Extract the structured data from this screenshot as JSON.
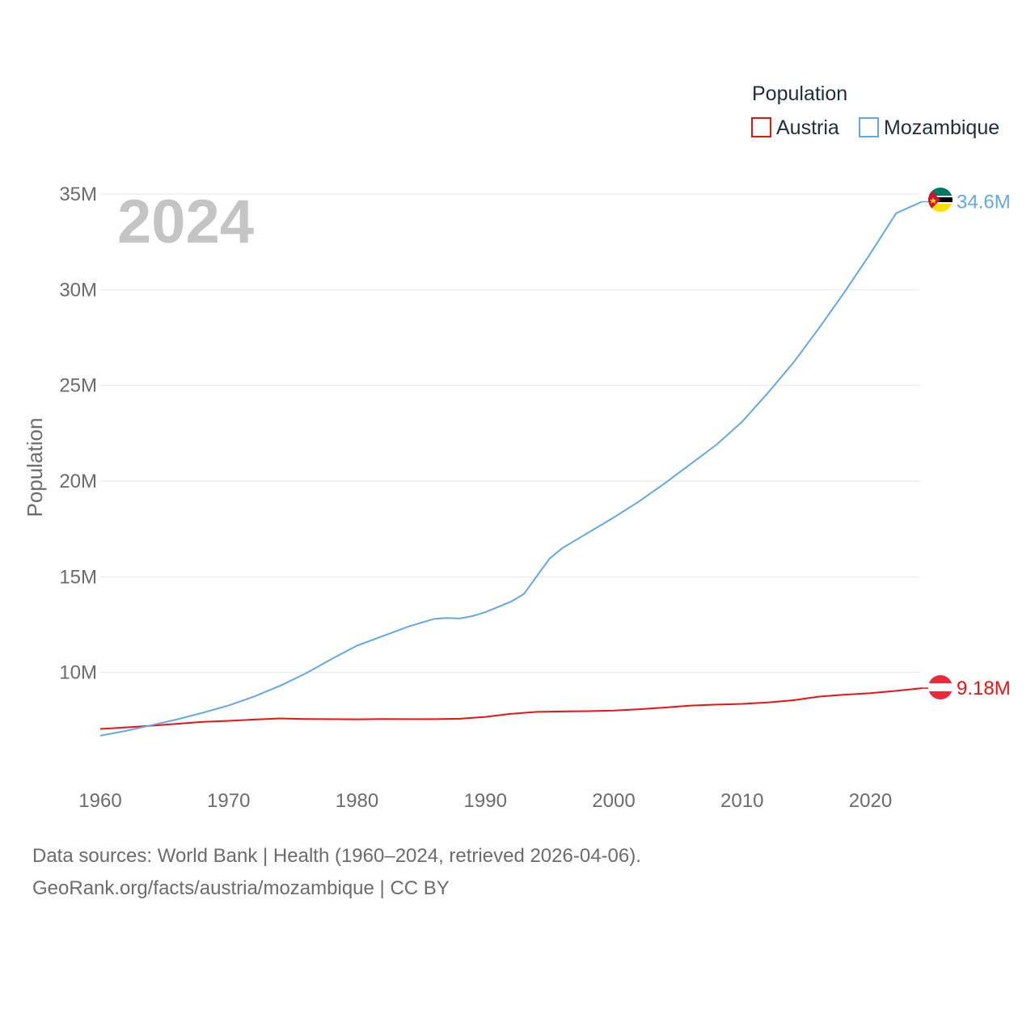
{
  "chart_data": {
    "type": "line",
    "current_year": "2024",
    "ylabel": "Population",
    "xlabel": "",
    "xlim": [
      1960,
      2024
    ],
    "ylim": [
      5000000,
      35000000
    ],
    "x_ticks": [
      1960,
      1970,
      1980,
      1990,
      2000,
      2010,
      2020
    ],
    "x_tick_labels": [
      "1960",
      "1970",
      "1980",
      "1990",
      "2000",
      "2010",
      "2020"
    ],
    "y_ticks": [
      10000000,
      15000000,
      20000000,
      25000000,
      30000000,
      35000000
    ],
    "y_tick_labels": [
      "10M",
      "15M",
      "20M",
      "25M",
      "30M",
      "35M"
    ],
    "legend": {
      "title": "Population",
      "placement": "top-right"
    },
    "series": [
      {
        "name": "Austria",
        "color": "#ee1111",
        "end_label": "9.18M",
        "flag": "austria-flag-icon",
        "x": [
          1960,
          1962,
          1964,
          1966,
          1968,
          1970,
          1972,
          1974,
          1976,
          1978,
          1980,
          1982,
          1984,
          1986,
          1988,
          1990,
          1992,
          1994,
          1996,
          1998,
          2000,
          2002,
          2004,
          2006,
          2008,
          2010,
          2012,
          2014,
          2016,
          2018,
          2020,
          2022,
          2024
        ],
        "values": [
          7050000,
          7130000,
          7220000,
          7320000,
          7420000,
          7470000,
          7540000,
          7600000,
          7570000,
          7560000,
          7550000,
          7570000,
          7560000,
          7560000,
          7580000,
          7680000,
          7840000,
          7940000,
          7960000,
          7980000,
          8010000,
          8080000,
          8170000,
          8270000,
          8320000,
          8360000,
          8430000,
          8550000,
          8740000,
          8840000,
          8920000,
          9040000,
          9180000
        ]
      },
      {
        "name": "Mozambique",
        "color": "#63a8e6",
        "end_label": "34.6M",
        "flag": "mozambique-flag-icon",
        "x": [
          1960,
          1962,
          1964,
          1966,
          1968,
          1970,
          1972,
          1974,
          1976,
          1978,
          1980,
          1982,
          1984,
          1986,
          1987,
          1988,
          1989,
          1990,
          1992,
          1993,
          1995,
          1996,
          1998,
          2000,
          2002,
          2004,
          2006,
          2008,
          2010,
          2012,
          2014,
          2016,
          2018,
          2020,
          2022,
          2024
        ],
        "values": [
          6700000,
          6950000,
          7250000,
          7550000,
          7900000,
          8280000,
          8750000,
          9300000,
          9950000,
          10700000,
          11400000,
          11900000,
          12400000,
          12800000,
          12850000,
          12820000,
          12950000,
          13150000,
          13700000,
          14100000,
          15950000,
          16500000,
          17300000,
          18100000,
          18950000,
          19900000,
          20900000,
          21900000,
          23100000,
          24600000,
          26200000,
          28000000,
          29900000,
          31900000,
          34000000,
          34600000
        ]
      }
    ]
  },
  "footer": {
    "line1": "Data sources: World Bank | Health (1960–2024, retrieved 2026-04-06).",
    "line2": "GeoRank.org/facts/austria/mozambique | CC BY"
  }
}
